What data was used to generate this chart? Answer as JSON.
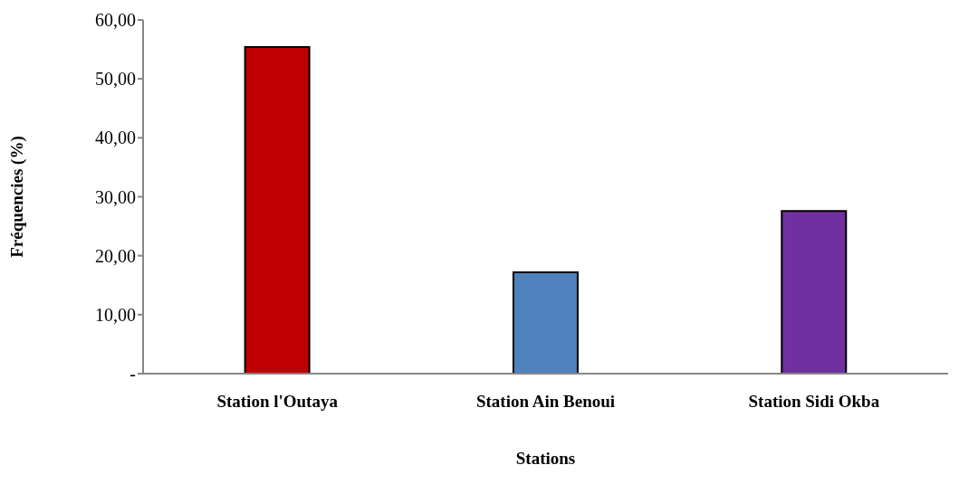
{
  "chart_data": {
    "type": "bar",
    "xlabel": "Stations",
    "ylabel": "Fréquencies (%)",
    "categories": [
      "Station l'Outaya",
      "Station Ain Benoui",
      "Station Sidi Okba"
    ],
    "values": [
      55.4,
      17.2,
      27.6
    ],
    "colors": [
      "#c00000",
      "#4f81bd",
      "#7030a0"
    ],
    "ylim": [
      0,
      60
    ],
    "yticks": [
      {
        "value": 0,
        "label": "-"
      },
      {
        "value": 10,
        "label": "10,00"
      },
      {
        "value": 20,
        "label": "20,00"
      },
      {
        "value": 30,
        "label": "30,00"
      },
      {
        "value": 40,
        "label": "40,00"
      },
      {
        "value": 50,
        "label": "50,00"
      },
      {
        "value": 60,
        "label": "60,00"
      }
    ],
    "grid": false
  }
}
